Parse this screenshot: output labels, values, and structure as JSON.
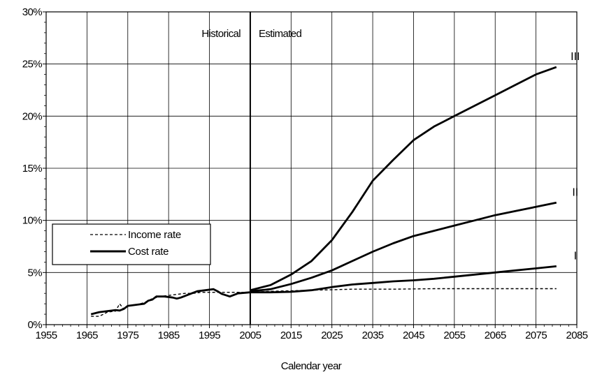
{
  "chart_data": {
    "type": "line",
    "title": "",
    "xlabel": "Calendar year",
    "ylabel": "",
    "xlim": [
      1955,
      2085
    ],
    "ylim": [
      0,
      30
    ],
    "x_ticks": [
      "1955",
      "1965",
      "1975",
      "1985",
      "1995",
      "2005",
      "2015",
      "2025",
      "2035",
      "2045",
      "2055",
      "2065",
      "2075",
      "2085"
    ],
    "y_ticks": [
      "0%",
      "5%",
      "10%",
      "15%",
      "20%",
      "25%",
      "30%"
    ],
    "grid": true,
    "legend_placement": "left",
    "legend": {
      "entries": [
        {
          "label": "Income rate",
          "style": "dashed"
        },
        {
          "label": "Cost rate",
          "style": "solid"
        }
      ]
    },
    "divider_year": 2005,
    "annotations": {
      "left": "Historical",
      "right": "Estimated"
    },
    "series": [
      {
        "group": "Income rate",
        "style": "dashed",
        "x": [
          1966,
          1968,
          1970,
          1972,
          1973,
          1974,
          1975,
          1977,
          1979,
          1980,
          1981,
          1983,
          1985,
          1987,
          1989,
          1991,
          1993,
          1995,
          1997,
          1999,
          2001,
          2003,
          2005,
          2010,
          2015,
          2020,
          2025,
          2030,
          2040,
          2050,
          2060,
          2070,
          2080
        ],
        "y": [
          0.8,
          0.8,
          1.2,
          1.3,
          2.0,
          1.5,
          1.8,
          1.9,
          2.1,
          2.3,
          2.5,
          2.7,
          2.8,
          2.9,
          3.0,
          3.0,
          3.1,
          3.1,
          3.1,
          3.1,
          3.1,
          3.1,
          3.1,
          3.2,
          3.25,
          3.3,
          3.35,
          3.4,
          3.4,
          3.45,
          3.45,
          3.45,
          3.45
        ]
      },
      {
        "group": "Cost rate",
        "style": "solid",
        "x": [
          1966,
          1968,
          1970,
          1972,
          1973,
          1974,
          1975,
          1977,
          1979,
          1980,
          1981,
          1982,
          1984,
          1986,
          1987,
          1988,
          1990,
          1992,
          1994,
          1996,
          1997,
          1998,
          2000,
          2002,
          2005
        ],
        "y": [
          1.0,
          1.2,
          1.3,
          1.4,
          1.35,
          1.5,
          1.8,
          1.9,
          2.0,
          2.3,
          2.4,
          2.7,
          2.7,
          2.6,
          2.5,
          2.6,
          2.9,
          3.2,
          3.3,
          3.4,
          3.2,
          2.95,
          2.7,
          3.0,
          3.1
        ]
      },
      {
        "name": "I",
        "group": "Cost rate",
        "style": "solid",
        "x": [
          2005,
          2010,
          2015,
          2020,
          2025,
          2030,
          2035,
          2040,
          2045,
          2050,
          2055,
          2060,
          2065,
          2070,
          2075,
          2080
        ],
        "y": [
          3.1,
          3.1,
          3.15,
          3.3,
          3.6,
          3.85,
          4.0,
          4.15,
          4.25,
          4.4,
          4.6,
          4.8,
          5.0,
          5.2,
          5.4,
          5.6
        ]
      },
      {
        "name": "II",
        "group": "Cost rate",
        "style": "solid",
        "x": [
          2005,
          2010,
          2015,
          2020,
          2025,
          2030,
          2035,
          2040,
          2045,
          2050,
          2055,
          2060,
          2065,
          2070,
          2075,
          2080
        ],
        "y": [
          3.2,
          3.4,
          3.9,
          4.5,
          5.2,
          6.1,
          7.0,
          7.8,
          8.5,
          9.0,
          9.5,
          10.0,
          10.5,
          10.9,
          11.3,
          11.7
        ]
      },
      {
        "name": "III",
        "group": "Cost rate",
        "style": "solid",
        "x": [
          2005,
          2010,
          2015,
          2020,
          2025,
          2030,
          2035,
          2040,
          2045,
          2050,
          2055,
          2060,
          2065,
          2070,
          2075,
          2080
        ],
        "y": [
          3.3,
          3.8,
          4.8,
          6.1,
          8.1,
          10.8,
          13.8,
          15.8,
          17.7,
          19.0,
          20.0,
          21.0,
          22.0,
          23.0,
          24.0,
          24.7
        ]
      }
    ]
  }
}
